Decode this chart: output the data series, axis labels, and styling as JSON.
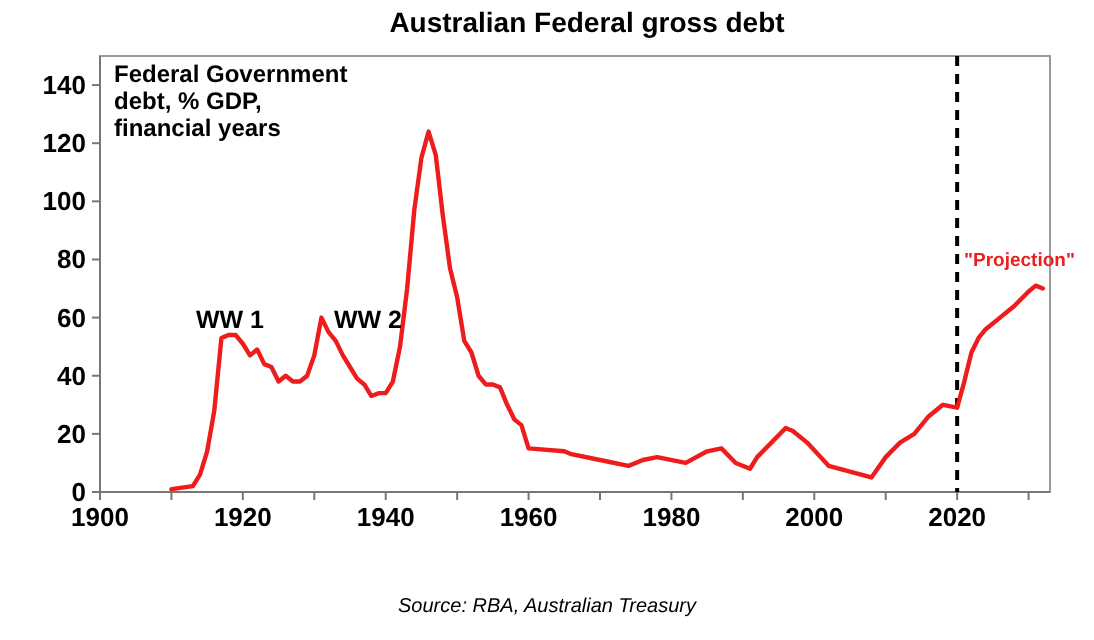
{
  "chart_data": {
    "type": "line",
    "title": "Australian Federal gross debt",
    "x": [
      1910,
      1913,
      1914,
      1915,
      1916,
      1917,
      1918,
      1919,
      1920,
      1921,
      1922,
      1923,
      1924,
      1925,
      1926,
      1927,
      1928,
      1929,
      1930,
      1931,
      1932,
      1933,
      1934,
      1935,
      1936,
      1937,
      1938,
      1939,
      1940,
      1941,
      1942,
      1943,
      1944,
      1945,
      1946,
      1947,
      1948,
      1949,
      1950,
      1951,
      1952,
      1953,
      1954,
      1955,
      1956,
      1957,
      1958,
      1959,
      1960,
      1965,
      1966,
      1970,
      1974,
      1976,
      1978,
      1982,
      1985,
      1987,
      1989,
      1991,
      1992,
      1994,
      1996,
      1997,
      1999,
      2002,
      2008,
      2010,
      2012,
      2014,
      2016,
      2018,
      2020,
      2021,
      2022,
      2023,
      2024,
      2026,
      2028,
      2030,
      2031,
      2032
    ],
    "series": [
      {
        "color": "#ee1c1c",
        "values": [
          1,
          2,
          6,
          14,
          28,
          53,
          54,
          54,
          51,
          47,
          49,
          44,
          43,
          38,
          40,
          38,
          38,
          40,
          47,
          60,
          55,
          52,
          47,
          43,
          39,
          37,
          33,
          34,
          34,
          38,
          50,
          70,
          97,
          115,
          124,
          116,
          95,
          77,
          67,
          52,
          48,
          40,
          37,
          37,
          36,
          30,
          25,
          23,
          15,
          14,
          13,
          11,
          9,
          11,
          12,
          10,
          14,
          15,
          10,
          8,
          12,
          17,
          22,
          21,
          17,
          9,
          5,
          12,
          17,
          20,
          26,
          30,
          29,
          38,
          48,
          53,
          56,
          60,
          64,
          69,
          71,
          70
        ]
      }
    ],
    "xlim": [
      1900,
      2033
    ],
    "ylim": [
      0,
      150
    ],
    "xticks": [
      1900,
      {
        "value": 1910,
        "label": null
      },
      1920,
      {
        "value": 1930,
        "label": null
      },
      1940,
      {
        "value": 1950,
        "label": null
      },
      1960,
      {
        "value": 1970,
        "label": null
      },
      1980,
      {
        "value": 1990,
        "label": null
      },
      2000,
      {
        "value": 2010,
        "label": null
      },
      2020,
      {
        "value": 2030,
        "label": null
      }
    ],
    "yticks": [
      0,
      20,
      40,
      60,
      80,
      100,
      120,
      140
    ],
    "grid": false,
    "marker": "none",
    "line_style": "solid",
    "ref_lines": [
      {
        "axis": "x",
        "value": 2020,
        "color": "#000000",
        "line_style": "dashed"
      }
    ],
    "annotations": [
      "WW 1",
      "WW 2",
      "\"Projection\"",
      "Federal Government\ndebt, % GDP,\nfinancial years",
      "Source: RBA, Australian Treasury"
    ]
  }
}
